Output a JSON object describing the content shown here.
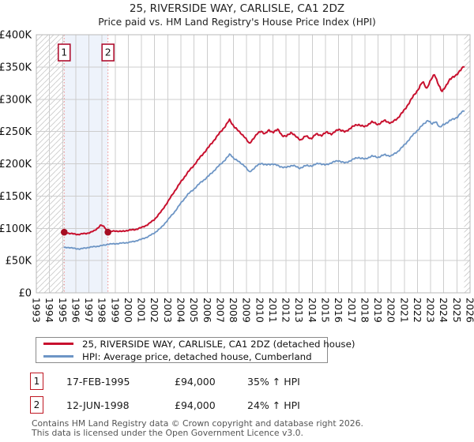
{
  "title": "25, RIVERSIDE WAY, CARLISLE, CA1 2DZ",
  "subtitle": "Price paid vs. HM Land Registry's House Price Index (HPI)",
  "colors": {
    "property_line": "#c8102e",
    "hpi_line": "#6d95c5",
    "sale_dot": "#a50d23",
    "sale_vline": "#ef8b8b",
    "marker_box_border": "#b01030",
    "band_fill": "#eef3fb",
    "grid": "#cdcdcd",
    "plot_border": "#b9b9b9",
    "hatch": "#cccccc",
    "footer_text": "#555555"
  },
  "chart_data": {
    "type": "line",
    "title": "25, RIVERSIDE WAY, CARLISLE, CA1 2DZ",
    "subtitle": "Price paid vs. HM Land Registry's House Price Index (HPI)",
    "xlabel": "",
    "ylabel": "",
    "x_range": [
      1993,
      2026
    ],
    "y_range": [
      0,
      400000
    ],
    "grid": true,
    "legend_position": "bottom",
    "y_ticks": [
      {
        "label": "£0",
        "v": 0
      },
      {
        "label": "£50K",
        "v": 50000
      },
      {
        "label": "£100K",
        "v": 100000
      },
      {
        "label": "£150K",
        "v": 150000
      },
      {
        "label": "£200K",
        "v": 200000
      },
      {
        "label": "£250K",
        "v": 250000
      },
      {
        "label": "£300K",
        "v": 300000
      },
      {
        "label": "£350K",
        "v": 350000
      },
      {
        "label": "£400K",
        "v": 400000
      }
    ],
    "x_ticks": [
      "1993",
      "1994",
      "1995",
      "1996",
      "1997",
      "1998",
      "1999",
      "2000",
      "2001",
      "2002",
      "2003",
      "2004",
      "2005",
      "2006",
      "2007",
      "2008",
      "2009",
      "2010",
      "2011",
      "2012",
      "2013",
      "2014",
      "2015",
      "2016",
      "2017",
      "2018",
      "2019",
      "2020",
      "2021",
      "2022",
      "2023",
      "2024",
      "2025",
      "2026"
    ],
    "shaded_band": [
      1995.12,
      1998.45
    ],
    "hatched_regions": [
      [
        1993,
        1995.12
      ],
      [
        2025.55,
        2026
      ]
    ],
    "sale_markers": [
      {
        "label": "1",
        "year": 1995.12,
        "value": 94000
      },
      {
        "label": "2",
        "year": 1998.45,
        "value": 94000
      }
    ],
    "series": [
      {
        "name": "25, RIVERSIDE WAY, CARLISLE, CA1 2DZ (detached house)",
        "color": "#c8102e",
        "width": 2,
        "points": [
          [
            1995.12,
            94000
          ],
          [
            1995.3,
            93000
          ],
          [
            1995.6,
            92000
          ],
          [
            1995.9,
            91000
          ],
          [
            1996.2,
            90500
          ],
          [
            1996.5,
            91500
          ],
          [
            1996.8,
            92000
          ],
          [
            1997.1,
            93500
          ],
          [
            1997.4,
            96000
          ],
          [
            1997.7,
            101000
          ],
          [
            1997.9,
            105000
          ],
          [
            1998.1,
            103000
          ],
          [
            1998.3,
            99000
          ],
          [
            1998.45,
            94000
          ],
          [
            1998.7,
            95000
          ],
          [
            1999.0,
            96000
          ],
          [
            1999.5,
            95000
          ],
          [
            2000.0,
            97000
          ],
          [
            2000.5,
            98000
          ],
          [
            2001.0,
            101000
          ],
          [
            2001.5,
            106000
          ],
          [
            2002.0,
            114000
          ],
          [
            2002.5,
            126000
          ],
          [
            2003.0,
            141000
          ],
          [
            2003.5,
            157000
          ],
          [
            2004.0,
            172000
          ],
          [
            2004.5,
            186000
          ],
          [
            2005.0,
            198000
          ],
          [
            2005.5,
            211000
          ],
          [
            2006.0,
            223000
          ],
          [
            2006.5,
            236000
          ],
          [
            2007.0,
            249000
          ],
          [
            2007.4,
            259000
          ],
          [
            2007.7,
            268000
          ],
          [
            2008.0,
            259000
          ],
          [
            2008.4,
            250000
          ],
          [
            2008.8,
            243000
          ],
          [
            2009.2,
            231000
          ],
          [
            2009.5,
            239000
          ],
          [
            2009.8,
            246000
          ],
          [
            2010.1,
            251000
          ],
          [
            2010.4,
            246000
          ],
          [
            2010.7,
            252000
          ],
          [
            2011.0,
            249000
          ],
          [
            2011.4,
            253000
          ],
          [
            2011.7,
            244000
          ],
          [
            2012.0,
            242000
          ],
          [
            2012.4,
            249000
          ],
          [
            2012.8,
            241000
          ],
          [
            2013.1,
            237000
          ],
          [
            2013.5,
            243000
          ],
          [
            2013.9,
            239000
          ],
          [
            2014.3,
            246000
          ],
          [
            2014.7,
            244000
          ],
          [
            2015.1,
            249000
          ],
          [
            2015.5,
            246000
          ],
          [
            2016.0,
            254000
          ],
          [
            2016.5,
            249000
          ],
          [
            2017.0,
            257000
          ],
          [
            2017.5,
            261000
          ],
          [
            2018.0,
            257000
          ],
          [
            2018.5,
            265000
          ],
          [
            2019.0,
            261000
          ],
          [
            2019.5,
            267000
          ],
          [
            2020.0,
            263000
          ],
          [
            2020.5,
            271000
          ],
          [
            2021.0,
            283000
          ],
          [
            2021.5,
            299000
          ],
          [
            2022.0,
            314000
          ],
          [
            2022.4,
            327000
          ],
          [
            2022.7,
            317000
          ],
          [
            2023.0,
            329000
          ],
          [
            2023.3,
            339000
          ],
          [
            2023.6,
            323000
          ],
          [
            2023.85,
            311000
          ],
          [
            2024.1,
            319000
          ],
          [
            2024.4,
            329000
          ],
          [
            2024.7,
            334000
          ],
          [
            2025.0,
            339000
          ],
          [
            2025.3,
            345000
          ],
          [
            2025.55,
            352000
          ]
        ]
      },
      {
        "name": "HPI: Average price, detached house, Cumberland",
        "color": "#6d95c5",
        "width": 1.8,
        "points": [
          [
            1995.12,
            70000
          ],
          [
            1995.4,
            70500
          ],
          [
            1995.7,
            69500
          ],
          [
            1996.0,
            68500
          ],
          [
            1996.3,
            68000
          ],
          [
            1996.6,
            69000
          ],
          [
            1997.0,
            70500
          ],
          [
            1997.4,
            71500
          ],
          [
            1997.8,
            72500
          ],
          [
            1998.2,
            74000
          ],
          [
            1998.45,
            75500
          ],
          [
            1999.0,
            76000
          ],
          [
            1999.5,
            77000
          ],
          [
            2000.0,
            78000
          ],
          [
            2000.5,
            80000
          ],
          [
            2001.0,
            83000
          ],
          [
            2001.5,
            87000
          ],
          [
            2002.0,
            93000
          ],
          [
            2002.5,
            101000
          ],
          [
            2003.0,
            113000
          ],
          [
            2003.5,
            125000
          ],
          [
            2004.0,
            139000
          ],
          [
            2004.5,
            152000
          ],
          [
            2005.0,
            161000
          ],
          [
            2005.5,
            171000
          ],
          [
            2006.0,
            179000
          ],
          [
            2006.5,
            189000
          ],
          [
            2007.0,
            199000
          ],
          [
            2007.4,
            207000
          ],
          [
            2007.75,
            215000
          ],
          [
            2008.0,
            209000
          ],
          [
            2008.4,
            203000
          ],
          [
            2008.8,
            198000
          ],
          [
            2009.2,
            187000
          ],
          [
            2009.5,
            192000
          ],
          [
            2009.8,
            197000
          ],
          [
            2010.1,
            201000
          ],
          [
            2010.5,
            198000
          ],
          [
            2011.0,
            200000
          ],
          [
            2011.5,
            196000
          ],
          [
            2012.0,
            194000
          ],
          [
            2012.5,
            198000
          ],
          [
            2013.0,
            193000
          ],
          [
            2013.5,
            197000
          ],
          [
            2014.0,
            197000
          ],
          [
            2014.5,
            201000
          ],
          [
            2015.0,
            198000
          ],
          [
            2015.5,
            202000
          ],
          [
            2016.0,
            205000
          ],
          [
            2016.5,
            201000
          ],
          [
            2017.0,
            206000
          ],
          [
            2017.5,
            210000
          ],
          [
            2018.0,
            207000
          ],
          [
            2018.5,
            212000
          ],
          [
            2019.0,
            210000
          ],
          [
            2019.5,
            214000
          ],
          [
            2020.0,
            212000
          ],
          [
            2020.5,
            219000
          ],
          [
            2021.0,
            229000
          ],
          [
            2021.5,
            241000
          ],
          [
            2022.0,
            252000
          ],
          [
            2022.5,
            262000
          ],
          [
            2022.8,
            268000
          ],
          [
            2023.1,
            261000
          ],
          [
            2023.4,
            266000
          ],
          [
            2023.7,
            256000
          ],
          [
            2024.0,
            261000
          ],
          [
            2024.5,
            267000
          ],
          [
            2025.0,
            272000
          ],
          [
            2025.55,
            283000
          ]
        ]
      }
    ]
  },
  "legend": {
    "items": [
      {
        "label": "25, RIVERSIDE WAY, CARLISLE, CA1 2DZ (detached house)",
        "color": "#c8102e"
      },
      {
        "label": "HPI: Average price, detached house, Cumberland",
        "color": "#6d95c5"
      }
    ]
  },
  "transactions": [
    {
      "num": "1",
      "date": "17-FEB-1995",
      "price": "£94,000",
      "hpi": "35% ↑ HPI"
    },
    {
      "num": "2",
      "date": "12-JUN-1998",
      "price": "£94,000",
      "hpi": "24% ↑ HPI"
    }
  ],
  "footer": {
    "line1": "Contains HM Land Registry data © Crown copyright and database right 2026.",
    "line2": "This data is licensed under the Open Government Licence v3.0."
  }
}
